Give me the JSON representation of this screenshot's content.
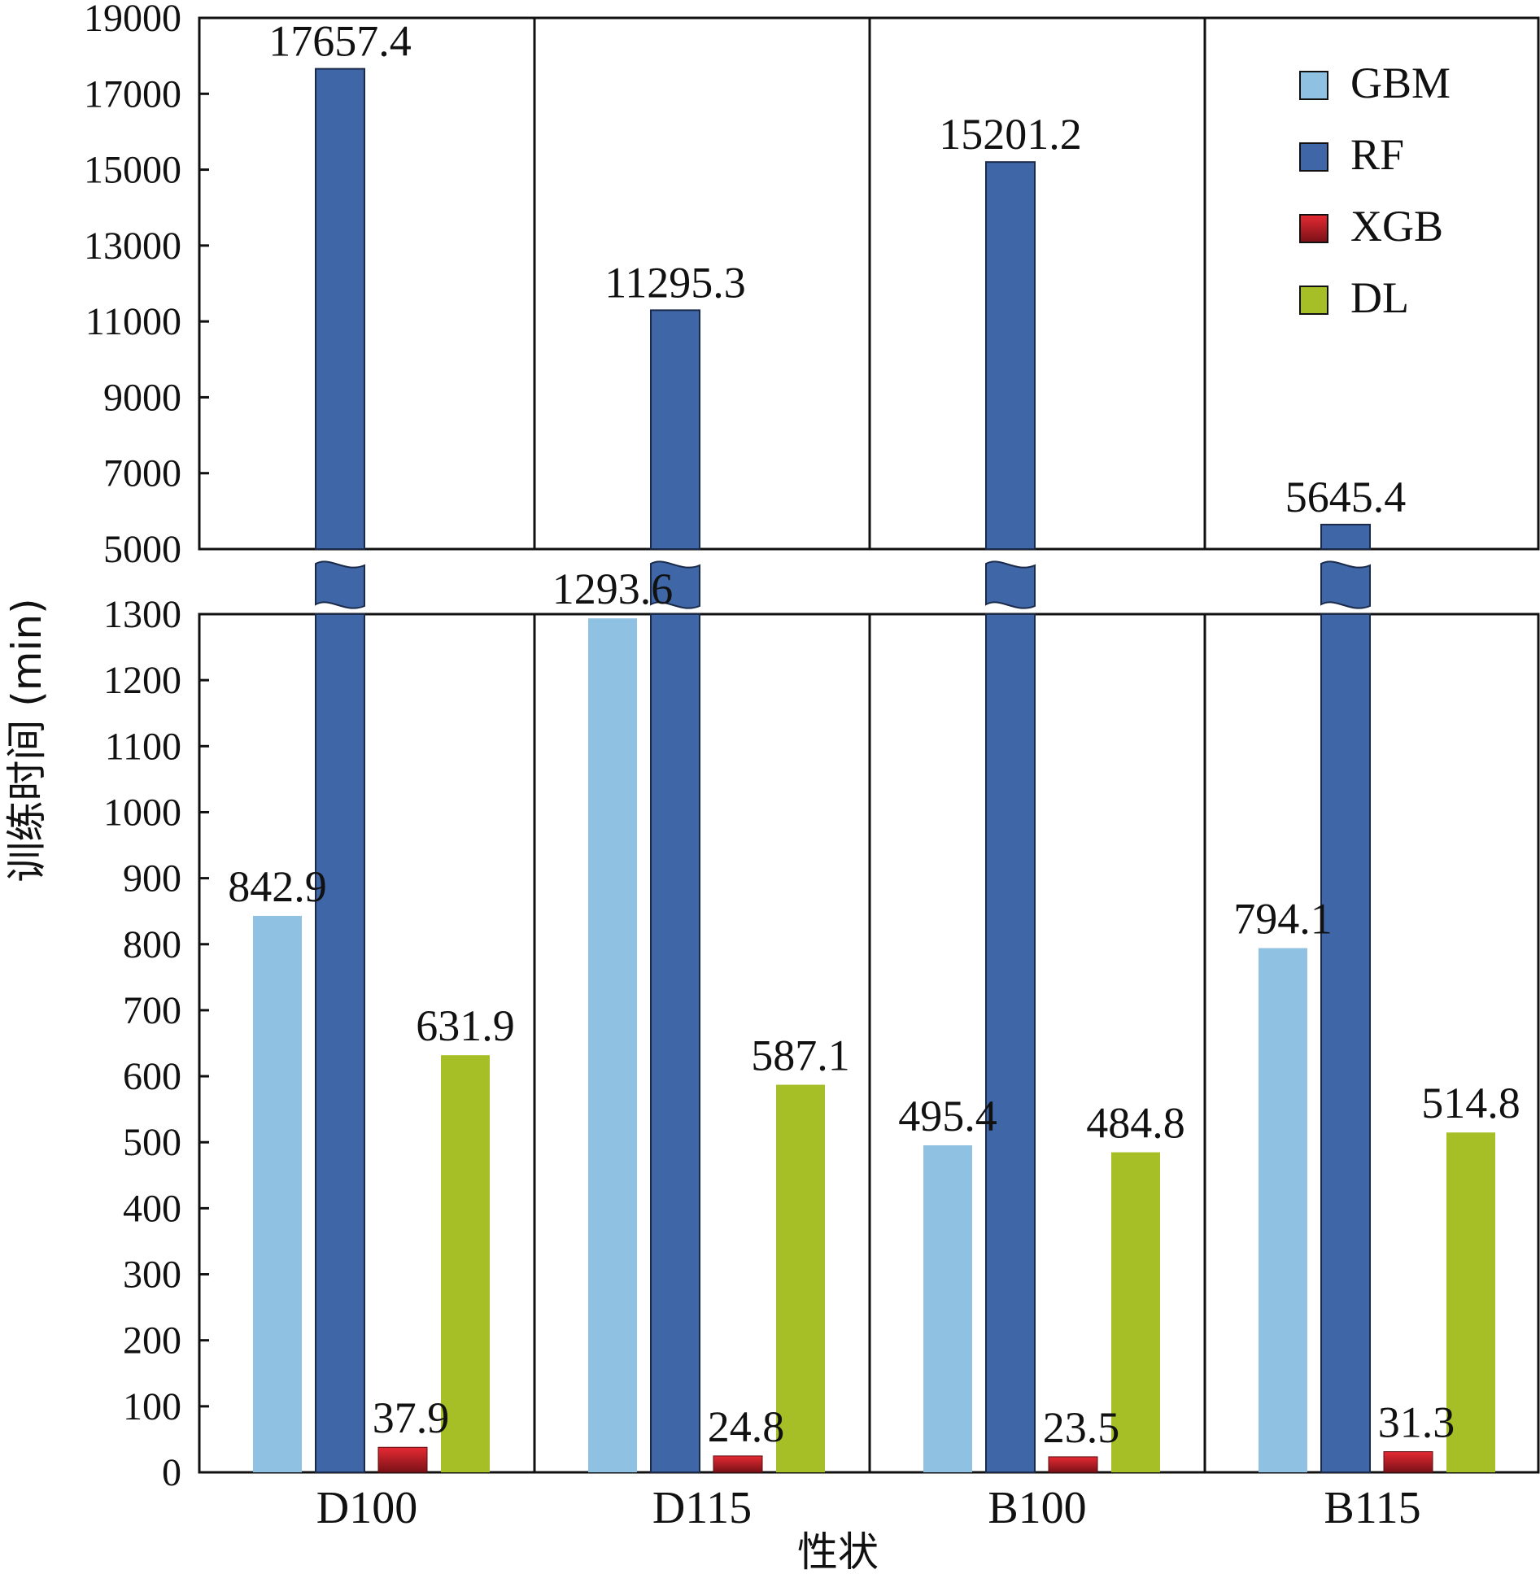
{
  "chart_data": {
    "type": "bar",
    "xlabel": "性状",
    "ylabel": "训练时间 (min)",
    "categories": [
      "D100",
      "D115",
      "B100",
      "B115"
    ],
    "series": [
      {
        "name": "GBM",
        "values": [
          842.9,
          1293.6,
          495.4,
          794.1
        ],
        "color": "#8fc1e3"
      },
      {
        "name": "RF",
        "values": [
          17657.4,
          11295.3,
          15201.2,
          5645.4
        ],
        "color": "#3f67a8"
      },
      {
        "name": "XGB",
        "values": [
          37.9,
          24.8,
          23.5,
          31.3
        ],
        "color": "#d4202a"
      },
      {
        "name": "DL",
        "values": [
          631.9,
          587.1,
          484.8,
          514.8
        ],
        "color": "#a6bf26"
      }
    ],
    "axis_break": true,
    "lower_ylim": [
      0,
      1300
    ],
    "lower_yticks": [
      "0",
      "100",
      "200",
      "300",
      "400",
      "500",
      "600",
      "700",
      "800",
      "900",
      "1000",
      "1100",
      "1200",
      "1300"
    ],
    "upper_ylim": [
      5000,
      19000
    ],
    "upper_yticks": [
      "5000",
      "7000",
      "9000",
      "11000",
      "13000",
      "15000",
      "17000",
      "19000"
    ],
    "legend_position": "top-right",
    "grid": false
  }
}
